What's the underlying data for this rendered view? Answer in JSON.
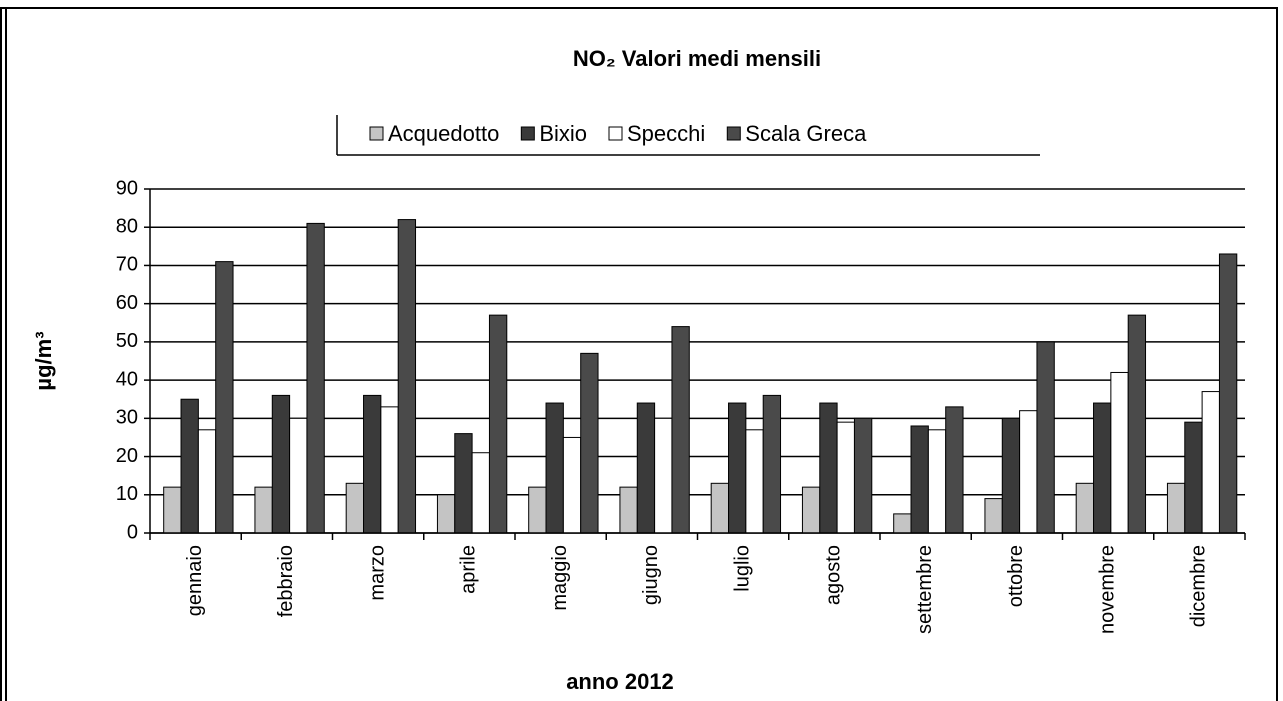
{
  "chart_data": {
    "type": "bar",
    "title": "NO₂ Valori medi mensili",
    "x_label": "anno 2012",
    "y_label": "µg/m³",
    "categories": [
      "gennaio",
      "febbraio",
      "marzo",
      "aprile",
      "maggio",
      "giugno",
      "luglio",
      "agosto",
      "settembre",
      "ottobre",
      "novembre",
      "dicembre"
    ],
    "series": [
      {
        "name": "Acquedotto",
        "color": "#c4c4c4",
        "values": [
          12,
          12,
          13,
          10,
          12,
          12,
          13,
          12,
          5,
          9,
          13,
          13
        ]
      },
      {
        "name": "Bixio",
        "color": "#3a3a3a",
        "values": [
          35,
          36,
          36,
          26,
          34,
          34,
          34,
          34,
          28,
          30,
          34,
          29
        ]
      },
      {
        "name": "Specchi",
        "color": "#ffffff",
        "values": [
          27,
          30,
          33,
          21,
          25,
          30,
          27,
          29,
          27,
          32,
          42,
          37
        ]
      },
      {
        "name": "Scala Greca",
        "color": "#4a4a4a",
        "values": [
          71,
          81,
          82,
          57,
          47,
          54,
          36,
          30,
          33,
          50,
          57,
          73
        ]
      }
    ],
    "ylim": [
      0,
      90
    ],
    "yticks": [
      0,
      10,
      20,
      30,
      40,
      50,
      60,
      70,
      80,
      90
    ],
    "grid": true,
    "legend": "top"
  }
}
